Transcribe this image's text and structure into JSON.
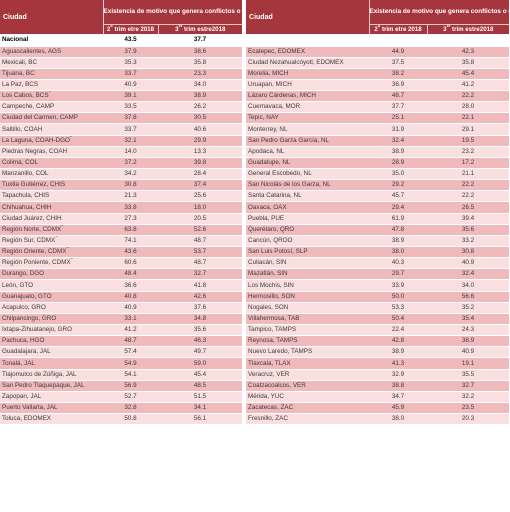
{
  "header": {
    "city_label": "Ciudad",
    "group_title": "Existencia de motivo que genera conflictos o enfrentamientos",
    "col_q2": "2",
    "col_q2_sup": "o",
    "col_q2_rest": " trim etre 2018",
    "col_q3": "3",
    "col_q3_sup": "er",
    "col_q3_rest": " trim estre2018"
  },
  "national": {
    "name": "Nacional",
    "q2": "43.5",
    "q3": "37.7"
  },
  "left_rows": [
    {
      "name": "Aguascalientes, AGS",
      "q2": "37.9",
      "q3": "38.6"
    },
    {
      "name": "Mexicali, BC",
      "q2": "35.3",
      "q3": "35.8"
    },
    {
      "name": "Tijuana, BC",
      "q2": "33.7",
      "q3": "23.3"
    },
    {
      "name": "La Paz, BCS",
      "q2": "40.9",
      "q3": "34.0"
    },
    {
      "name": "Los Cabos, BCS",
      "sup": "1",
      "q2": "39.1",
      "q3": "38.9"
    },
    {
      "name": "Campeche, CAMP",
      "q2": "33.5",
      "q3": "26.2"
    },
    {
      "name": "Ciudad del Carmen, CAMP",
      "q2": "37.8",
      "q3": "30.5"
    },
    {
      "name": "Saltillo, COAH",
      "q2": "33.7",
      "q3": "40.6"
    },
    {
      "name": "La Laguna, COAH-DGO",
      "sup": "2",
      "q2": "32.1",
      "q3": "29.9"
    },
    {
      "name": "Piedras Negras, COAH",
      "q2": "14.0",
      "q3": "13.3"
    },
    {
      "name": "Colima, COL",
      "q2": "37.2",
      "q3": "39.8"
    },
    {
      "name": "Manzanillo, COL",
      "q2": "34.2",
      "q3": "28.4"
    },
    {
      "name": "Tuxtla Gutiérrez, CHIS",
      "q2": "30.8",
      "q3": "37.4"
    },
    {
      "name": "Tapachula, CHIS",
      "q2": "21.3",
      "q3": "25.6"
    },
    {
      "name": "Chihuahua, CHIH",
      "q2": "33.8",
      "q3": "18.0"
    },
    {
      "name": "Ciudad Juárez, CHIH",
      "q2": "27.3",
      "q3": "20.5"
    },
    {
      "name": "Región Norte, CDMX",
      "sup": "3",
      "q2": "63.8",
      "q3": "52.6"
    },
    {
      "name": "Región Sur, CDMX",
      "sup": "4",
      "q2": "74.1",
      "q3": "48.7"
    },
    {
      "name": "Región Oriente, CDMX",
      "sup": "5",
      "q2": "43.6",
      "q3": "53.7"
    },
    {
      "name": "Región Poniente, CDMX",
      "sup": "6",
      "q2": "60.6",
      "q3": "48.7"
    },
    {
      "name": "Durango, DGO",
      "q2": "48.4",
      "q3": "32.7"
    },
    {
      "name": "León, GTO",
      "q2": "36.6",
      "q3": "41.8"
    },
    {
      "name": "Guanajuato, GTO",
      "q2": "40.8",
      "q3": "42.6"
    },
    {
      "name": "Acapulco, GRO",
      "q2": "40.9",
      "q3": "37.6"
    },
    {
      "name": "Chilpancingo, GRO",
      "q2": "33.1",
      "q3": "34.8"
    },
    {
      "name": "Ixtapa-Zihuatanejo, GRO",
      "q2": "41.2",
      "q3": "35.6"
    },
    {
      "name": "Pachuca, HGO",
      "q2": "48.7",
      "q3": "46.3"
    },
    {
      "name": "Guadalajara, JAL",
      "q2": "57.4",
      "q3": "49.7"
    },
    {
      "name": "Tonalá, JAL",
      "q2": "54.9",
      "q3": "59.0"
    },
    {
      "name": "Tlajomulco de Zúñiga, JAL",
      "q2": "54.1",
      "q3": "45.4"
    },
    {
      "name": "San Pedro Tlaquepaque, JAL",
      "q2": "56.9",
      "q3": "48.5"
    },
    {
      "name": "Zapopan, JAL",
      "q2": "52.7",
      "q3": "51.5"
    },
    {
      "name": "Puerto Vallarta, JAL",
      "q2": "32.8",
      "q3": "34.1"
    },
    {
      "name": "Toluca, EDOMEX",
      "q2": "50.8",
      "q3": "56.1"
    }
  ],
  "right_rows": [
    {
      "name": "Ecatepec, EDOMEX",
      "q2": "44.9",
      "q3": "42.3"
    },
    {
      "name": "Ciudad Nezahualcóyotl, EDOMEX",
      "q2": "37.5",
      "q3": "35.8"
    },
    {
      "name": "Morelia, MICH",
      "q2": "38.2",
      "q3": "45.4"
    },
    {
      "name": "Uruapan, MICH",
      "q2": "36.9",
      "q3": "41.2"
    },
    {
      "name": "Lázaro Cárdenas, MICH",
      "q2": "48.7",
      "q3": "22.2"
    },
    {
      "name": "Cuernavaca, MOR",
      "q2": "37.7",
      "q3": "28.0"
    },
    {
      "name": "Tepic, NAY",
      "q2": "25.1",
      "q3": "22.1"
    },
    {
      "name": "Monterrey, NL",
      "q2": "31.9",
      "q3": "29.1"
    },
    {
      "name": "San Pedro Garza García, NL",
      "q2": "32.4",
      "q3": "19.5"
    },
    {
      "name": "Apodaca, NL",
      "q2": "38.9",
      "q3": "23.2"
    },
    {
      "name": "Guadalupe, NL",
      "q2": "28.9",
      "q3": "17.2"
    },
    {
      "name": "General Escobedo, NL",
      "q2": "35.0",
      "q3": "21.1"
    },
    {
      "name": "San Nicolás de los Garza, NL",
      "q2": "29.2",
      "q3": "22.2"
    },
    {
      "name": "Santa Catarina, NL",
      "q2": "45.7",
      "q3": "22.2"
    },
    {
      "name": "Oaxaca, OAX",
      "q2": "29.4",
      "q3": "26.5"
    },
    {
      "name": "Puebla, PUE",
      "q2": "61.9",
      "q3": "39.4"
    },
    {
      "name": "Querétaro, QRO",
      "q2": "47.8",
      "q3": "35.6"
    },
    {
      "name": "Cancún, QROO",
      "q2": "38.9",
      "q3": "33.2"
    },
    {
      "name": "San Luis Potosí, SLP",
      "q2": "38.0",
      "q3": "30.8"
    },
    {
      "name": "Culiacán, SIN",
      "q2": "40.3",
      "q3": "40.9"
    },
    {
      "name": "Mazatlán, SIN",
      "q2": "29.7",
      "q3": "32.4"
    },
    {
      "name": "Los Mochis, SIN",
      "q2": "33.9",
      "q3": "34.0"
    },
    {
      "name": "Hermosillo, SON",
      "q2": "50.0",
      "q3": "56.6"
    },
    {
      "name": "Nogales, SON",
      "q2": "53.3",
      "q3": "35.2"
    },
    {
      "name": "Villahermosa, TAB",
      "q2": "50.4",
      "q3": "35.4"
    },
    {
      "name": "Tampico, TAMPS",
      "q2": "22.4",
      "q3": "24.3"
    },
    {
      "name": "Reynosa, TAMPS",
      "q2": "42.8",
      "q3": "38.9"
    },
    {
      "name": "Nuevo Laredo, TAMPS",
      "q2": "38.9",
      "q3": "40.9"
    },
    {
      "name": "Tlaxcala, TLAX",
      "q2": "41.3",
      "q3": "19.1"
    },
    {
      "name": "Veracruz, VER",
      "q2": "32.9",
      "q3": "35.5"
    },
    {
      "name": "Coatzacoalcos, VER",
      "q2": "38.8",
      "q3": "32.7"
    },
    {
      "name": "Mérida, YUC",
      "q2": "34.7",
      "q3": "32.2"
    },
    {
      "name": "Zacatecas, ZAC",
      "q2": "45.9",
      "q3": "23.5"
    },
    {
      "name": "Fresnillo, ZAC",
      "q2": "38.0",
      "q3": "20.3"
    }
  ],
  "colors": {
    "header": "#a6363e",
    "row_dark": "#f0b9bc",
    "row_light": "#f9dfe0"
  }
}
